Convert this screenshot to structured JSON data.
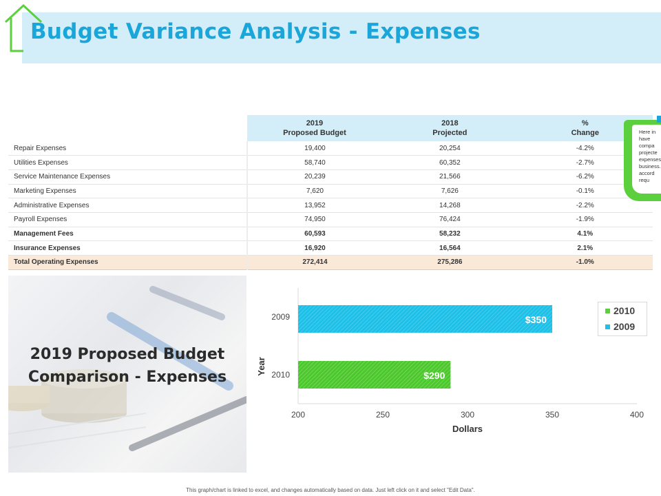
{
  "page": {
    "title": "Budget Variance Analysis - Expenses",
    "footer": "This graph/chart is linked to excel, and changes automatically based on data. Just left click on it and select \"Edit Data\"."
  },
  "table": {
    "headers": [
      {
        "line1": "2019",
        "line2": "Proposed Budget"
      },
      {
        "line1": "2018",
        "line2": "Projected"
      },
      {
        "line1": "%",
        "line2": "Change"
      }
    ],
    "rows": [
      {
        "label": "Repair Expenses",
        "budget": "19,400",
        "projected": "20,254",
        "change": "-4.2%"
      },
      {
        "label": "Utilities Expenses",
        "budget": "58,740",
        "projected": "60,352",
        "change": "-2.7%"
      },
      {
        "label": "Service Maintenance Expenses",
        "budget": "20,239",
        "projected": "21,566",
        "change": "-6.2%"
      },
      {
        "label": "Marketing Expenses",
        "budget": "7,620",
        "projected": "7,626",
        "change": "-0.1%"
      },
      {
        "label": "Administrative Expenses",
        "budget": "13,952",
        "projected": "14,268",
        "change": "-2.2%"
      },
      {
        "label": "Payroll Expenses",
        "budget": "74,950",
        "projected": "76,424",
        "change": "-1.9%"
      },
      {
        "label": "Management Fees",
        "budget": "60,593",
        "projected": "58,232",
        "change": "4.1%"
      },
      {
        "label": "Insurance Expenses",
        "budget": "16,920",
        "projected": "16,564",
        "change": "2.1%"
      }
    ],
    "total": {
      "label": "Total Operating Expenses",
      "budget": "272,414",
      "projected": "275,286",
      "change": "-1.0%"
    }
  },
  "note": {
    "text": "Here in\nhave\ncompa\nprojecte\nexpenses\nbusiness.\naccord\nrequ"
  },
  "panel": {
    "title_line1": "2019 Proposed Budget",
    "title_line2": "Comparison - Expenses"
  },
  "colors": {
    "accent_blue": "#1aa6d9",
    "accent_green": "#5ccf3f",
    "title_band": "#d4eef9"
  },
  "chart_data": {
    "type": "bar",
    "orientation": "horizontal",
    "categories": [
      "2009",
      "2010"
    ],
    "series": [
      {
        "name": "2010",
        "color": "#5ccf3f",
        "values": [
          null,
          290
        ]
      },
      {
        "name": "2009",
        "color": "#1ec0e8",
        "values": [
          350,
          null
        ]
      }
    ],
    "data_labels": [
      "$350",
      "$290"
    ],
    "xlabel": "Dollars",
    "ylabel": "Year",
    "xlim": [
      200,
      400
    ],
    "xticks": [
      "200",
      "250",
      "300",
      "350",
      "400"
    ],
    "legend_position": "top-right",
    "grid": false
  }
}
